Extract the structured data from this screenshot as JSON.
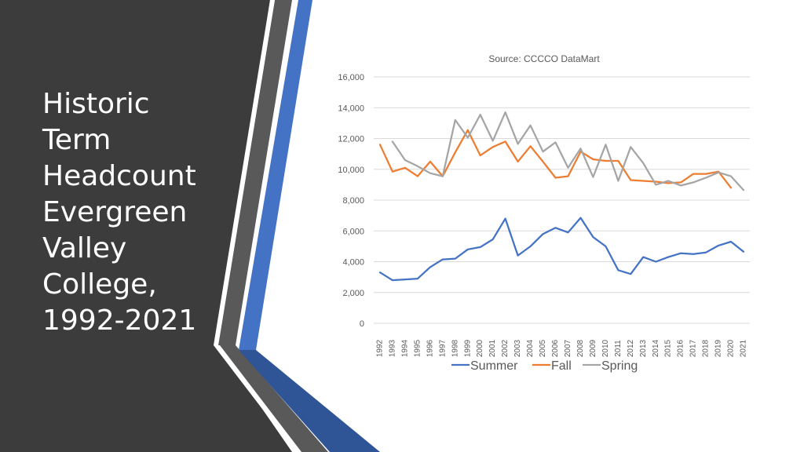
{
  "slide": {
    "title_lines": [
      "Historic",
      "Term",
      "Headcount",
      "Evergreen",
      "Valley",
      "College,",
      "1992-2021"
    ],
    "colors": {
      "panel": "#3c3c3c",
      "stripe_gray": "#595959",
      "stripe_blue": "#4472c4",
      "stripe_white": "#ffffff"
    }
  },
  "chart_data": {
    "type": "line",
    "annotation": "Source:  CCCCO DataMart",
    "x": [
      1992,
      1993,
      1994,
      1995,
      1996,
      1997,
      1998,
      1999,
      2000,
      2001,
      2002,
      2003,
      2004,
      2005,
      2006,
      2007,
      2008,
      2009,
      2010,
      2011,
      2012,
      2013,
      2014,
      2015,
      2016,
      2017,
      2018,
      2019,
      2020,
      2021
    ],
    "xtick_labels": [
      "1992",
      "1993",
      "1994",
      "1995",
      "1996",
      "1997",
      "1998",
      "1999",
      "2000",
      "2001",
      "2002",
      "2003",
      "2004",
      "2005",
      "2006",
      "2007",
      "2008",
      "2009",
      "2010",
      "2011",
      "2012",
      "2013",
      "2014",
      "2015",
      "2016",
      "2017",
      "2018",
      "2019",
      "2020",
      "2021"
    ],
    "ylim": [
      0,
      16000
    ],
    "yticks": [
      0,
      2000,
      4000,
      6000,
      8000,
      10000,
      12000,
      14000,
      16000
    ],
    "ytick_labels": [
      "0",
      "2,000",
      "4,000",
      "6,000",
      "8,000",
      "10,000",
      "12,000",
      "14,000",
      "16,000"
    ],
    "grid": true,
    "legend_position": "bottom",
    "series": [
      {
        "name": "Summer",
        "color": "#4472c4",
        "values": [
          3300,
          2800,
          2850,
          2900,
          3650,
          4150,
          4200,
          4800,
          4950,
          5450,
          6800,
          4400,
          5000,
          5800,
          6200,
          5900,
          6850,
          5600,
          5000,
          3450,
          3200,
          4300,
          4000,
          4300,
          4550,
          4500,
          4600,
          5050,
          5300,
          4650
        ]
      },
      {
        "name": "Fall",
        "color": "#ed7d31",
        "values": [
          11600,
          9850,
          10100,
          9550,
          10500,
          9550,
          11100,
          12550,
          10900,
          11450,
          11800,
          10500,
          11500,
          10500,
          9450,
          9550,
          11150,
          10650,
          10550,
          10550,
          9300,
          9250,
          9200,
          9100,
          9150,
          9700,
          9700,
          9850,
          8800,
          null
        ]
      },
      {
        "name": "Spring",
        "color": "#a5a5a5",
        "values": [
          null,
          11800,
          10600,
          10200,
          9750,
          9550,
          13200,
          12050,
          13550,
          11850,
          13700,
          11650,
          12850,
          11150,
          11750,
          10100,
          11350,
          9500,
          11600,
          9250,
          11450,
          10400,
          9000,
          9250,
          8950,
          9150,
          9450,
          9800,
          9550,
          8650
        ]
      }
    ]
  }
}
